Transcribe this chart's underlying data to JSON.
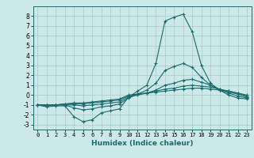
{
  "title": "",
  "xlabel": "Humidex (Indice chaleur)",
  "ylabel": "",
  "bg_color": "#cce8e8",
  "grid_color": "#aacccc",
  "line_color": "#1a6b6b",
  "xlim": [
    -0.5,
    23.5
  ],
  "ylim": [
    -3.5,
    9.0
  ],
  "yticks": [
    -3,
    -2,
    -1,
    0,
    1,
    2,
    3,
    4,
    5,
    6,
    7,
    8
  ],
  "xticks": [
    0,
    1,
    2,
    3,
    4,
    5,
    6,
    7,
    8,
    9,
    10,
    11,
    12,
    13,
    14,
    15,
    16,
    17,
    18,
    19,
    20,
    21,
    22,
    23
  ],
  "lines": [
    {
      "x": [
        0,
        1,
        2,
        3,
        4,
        5,
        6,
        7,
        8,
        9,
        10,
        11,
        12,
        13,
        14,
        15,
        16,
        17,
        18,
        19,
        20,
        21,
        22,
        23
      ],
      "y": [
        -1.0,
        -1.2,
        -1.1,
        -1.1,
        -2.2,
        -2.7,
        -2.5,
        -1.8,
        -1.6,
        -1.4,
        -0.2,
        0.4,
        1.0,
        3.2,
        7.5,
        7.9,
        8.2,
        6.4,
        3.0,
        1.2,
        0.5,
        0.0,
        -0.3,
        -0.4
      ]
    },
    {
      "x": [
        0,
        1,
        2,
        3,
        4,
        5,
        6,
        7,
        8,
        9,
        10,
        11,
        12,
        13,
        14,
        15,
        16,
        17,
        18,
        19,
        20,
        21,
        22,
        23
      ],
      "y": [
        -1.0,
        -1.1,
        -1.0,
        -1.0,
        -1.3,
        -1.5,
        -1.4,
        -1.2,
        -1.1,
        -0.9,
        -0.3,
        0.1,
        0.5,
        1.2,
        2.5,
        2.9,
        3.2,
        2.8,
        1.8,
        1.0,
        0.5,
        0.2,
        -0.1,
        -0.3
      ]
    },
    {
      "x": [
        0,
        1,
        2,
        3,
        4,
        5,
        6,
        7,
        8,
        9,
        10,
        11,
        12,
        13,
        14,
        15,
        16,
        17,
        18,
        19,
        20,
        21,
        22,
        23
      ],
      "y": [
        -1.0,
        -1.0,
        -1.0,
        -1.0,
        -1.0,
        -1.1,
        -1.0,
        -0.9,
        -0.8,
        -0.7,
        -0.2,
        0.0,
        0.2,
        0.5,
        1.0,
        1.2,
        1.5,
        1.6,
        1.3,
        1.0,
        0.6,
        0.3,
        0.1,
        -0.2
      ]
    },
    {
      "x": [
        0,
        1,
        2,
        3,
        4,
        5,
        6,
        7,
        8,
        9,
        10,
        11,
        12,
        13,
        14,
        15,
        16,
        17,
        18,
        19,
        20,
        21,
        22,
        23
      ],
      "y": [
        -1.0,
        -1.0,
        -1.0,
        -0.9,
        -0.9,
        -0.9,
        -0.8,
        -0.7,
        -0.6,
        -0.5,
        -0.1,
        0.1,
        0.2,
        0.4,
        0.6,
        0.7,
        0.9,
        1.0,
        0.9,
        0.8,
        0.6,
        0.4,
        0.2,
        -0.1
      ]
    },
    {
      "x": [
        0,
        1,
        2,
        3,
        4,
        5,
        6,
        7,
        8,
        9,
        10,
        11,
        12,
        13,
        14,
        15,
        16,
        17,
        18,
        19,
        20,
        21,
        22,
        23
      ],
      "y": [
        -1.0,
        -1.0,
        -1.0,
        -0.9,
        -0.8,
        -0.8,
        -0.7,
        -0.6,
        -0.5,
        -0.4,
        0.0,
        0.1,
        0.2,
        0.3,
        0.4,
        0.5,
        0.6,
        0.7,
        0.7,
        0.6,
        0.5,
        0.4,
        0.2,
        0.0
      ]
    }
  ]
}
